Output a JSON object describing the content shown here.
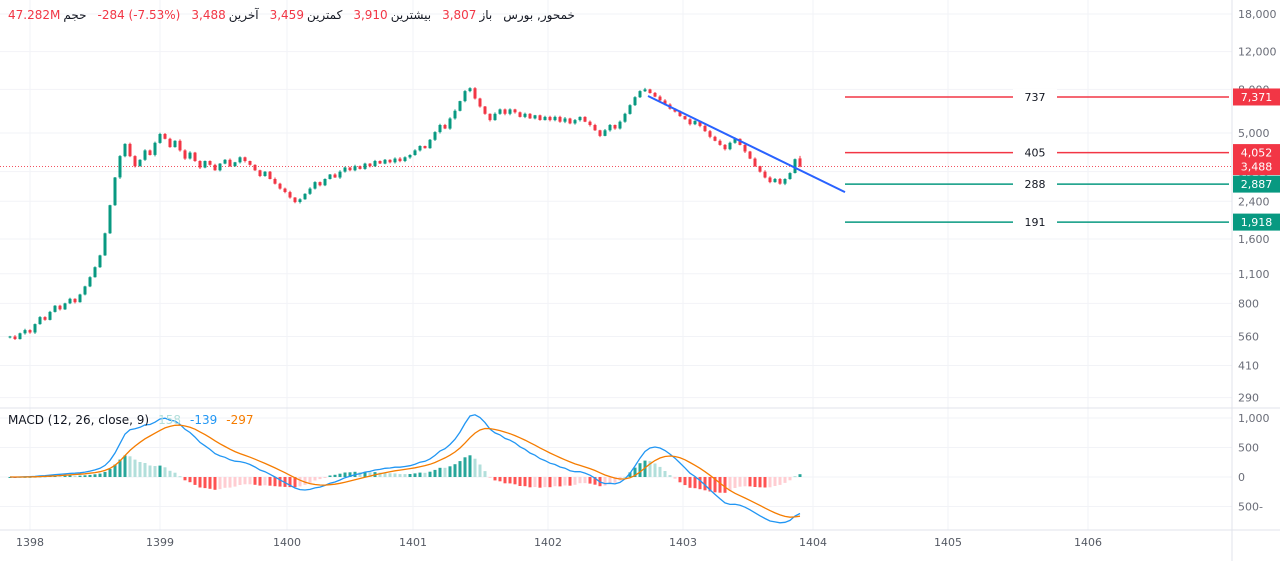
{
  "header": {
    "symbol": "خمحور, بورس",
    "fields": [
      {
        "label": "باز",
        "value": "3,807"
      },
      {
        "label": "بیشترین",
        "value": "3,910"
      },
      {
        "label": "کمترین",
        "value": "3,459"
      },
      {
        "label": "آخرین",
        "value": "3,488"
      }
    ],
    "change": "-284 (-7.53%)",
    "volume": {
      "label": "حجم",
      "value": "47.282M"
    }
  },
  "chart_data": {
    "type": "candlestick",
    "title": "خمحور, بورس",
    "x_axis": {
      "years": [
        "1398",
        "1399",
        "1400",
        "1401",
        "1402",
        "1403",
        "1404",
        "1405",
        "1406"
      ]
    },
    "y_axis": {
      "scale": "log",
      "ticks": [
        18000,
        12000,
        8000,
        5000,
        3300,
        2400,
        1600,
        1100,
        800,
        560,
        410,
        290
      ]
    },
    "closes": [
      560,
      545,
      580,
      600,
      585,
      640,
      690,
      670,
      730,
      780,
      750,
      800,
      840,
      810,
      880,
      960,
      1060,
      1180,
      1340,
      1700,
      2300,
      3100,
      3900,
      4450,
      3900,
      3500,
      3750,
      4150,
      3950,
      4500,
      4950,
      4700,
      4300,
      4600,
      4150,
      3800,
      4050,
      3700,
      3450,
      3700,
      3550,
      3350,
      3600,
      3750,
      3500,
      3650,
      3850,
      3700,
      3550,
      3350,
      3150,
      3300,
      3050,
      2900,
      2750,
      2650,
      2500,
      2380,
      2450,
      2600,
      2750,
      2950,
      2850,
      3050,
      3200,
      3100,
      3300,
      3450,
      3350,
      3500,
      3400,
      3600,
      3500,
      3700,
      3600,
      3750,
      3650,
      3800,
      3700,
      3850,
      3950,
      4150,
      4350,
      4250,
      4650,
      5050,
      5450,
      5250,
      5850,
      6350,
      7050,
      7850,
      8100,
      7250,
      6650,
      6150,
      5750,
      6150,
      6450,
      6150,
      6450,
      6250,
      5950,
      6150,
      5850,
      6050,
      5750,
      5950,
      5750,
      5950,
      5650,
      5850,
      5550,
      5750,
      5950,
      5650,
      5450,
      5150,
      4850,
      5150,
      5450,
      5250,
      5650,
      6150,
      6750,
      7350,
      7850,
      8000,
      7700,
      7400,
      7100,
      6800,
      6500,
      6300,
      6000,
      5800,
      5500,
      5700,
      5400,
      5100,
      4800,
      4600,
      4400,
      4200,
      4500,
      4700,
      4400,
      4100,
      3800,
      3500,
      3300,
      3100,
      2950,
      3050,
      2900,
      3050,
      3250,
      3772,
      3488
    ],
    "last_candle": {
      "open": 3807,
      "high": 3910,
      "low": 3459,
      "close": 3488
    },
    "current_price": 3488,
    "levels": [
      {
        "price": 7371,
        "label": "737",
        "color": "#f23645"
      },
      {
        "price": 4052,
        "label": "405",
        "color": "#f23645"
      },
      {
        "price": 2887,
        "label": "288",
        "color": "#089981"
      },
      {
        "price": 1918,
        "label": "191",
        "color": "#089981"
      }
    ],
    "trendline": {
      "from_index": 127.6,
      "from_price": 7450,
      "to_index": 167,
      "to_price": 2650,
      "color": "#2962ff"
    },
    "colors": {
      "up": "#089981",
      "down": "#f23645"
    }
  },
  "macd": {
    "title": "MACD (12, 26, close, 9)",
    "values": {
      "histogram": "158",
      "macd": "-139",
      "signal": "-297"
    },
    "params": {
      "fast": 12,
      "slow": 26,
      "source": "close",
      "signal": 9
    },
    "y_ticks": [
      1000,
      500,
      0,
      -500
    ],
    "colors": {
      "histogram_pos": "#26a69a",
      "histogram_pos_weak": "#b2dfdb",
      "histogram_neg": "#ff5252",
      "histogram_neg_weak": "#ffcdd2",
      "macd_line": "#2196f3",
      "signal_line": "#f57c00",
      "hist_value": "#b2dfdb"
    }
  }
}
